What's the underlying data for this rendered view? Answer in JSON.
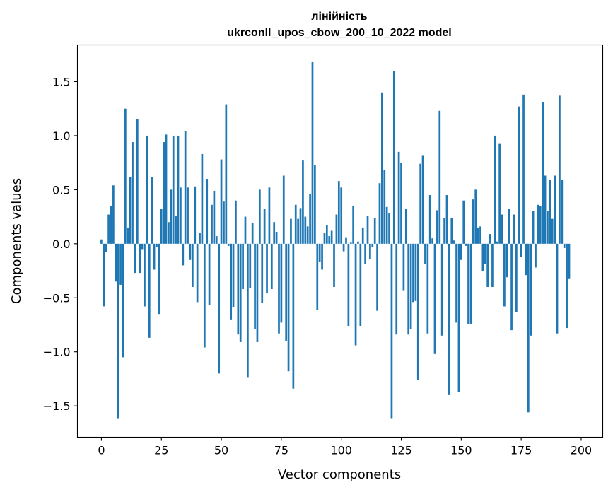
{
  "chart_data": {
    "type": "bar",
    "title": "лінійність",
    "subtitle": "ukrconll_upos_cbow_200_10_2022 model",
    "xlabel": "Vector components",
    "ylabel": "Components values",
    "xlim": [
      -10,
      209
    ],
    "ylim": [
      -1.79,
      1.84
    ],
    "xticks": [
      0,
      25,
      50,
      75,
      100,
      125,
      150,
      175,
      200
    ],
    "yticks": [
      -1.5,
      -1.0,
      -0.5,
      0.0,
      0.5,
      1.0,
      1.5
    ],
    "ytick_labels": [
      "−1.5",
      "−1.0",
      "−0.5",
      "0.0",
      "0.5",
      "1.0",
      "1.5"
    ],
    "grid": false,
    "bar_color": "#1f77b4",
    "values": [
      0.04,
      -0.58,
      -0.08,
      0.27,
      0.35,
      0.54,
      -0.35,
      -1.62,
      -0.38,
      -1.05,
      1.25,
      0.15,
      0.62,
      0.94,
      -0.27,
      1.15,
      -0.27,
      -0.05,
      -0.58,
      1.0,
      -0.87,
      0.62,
      -0.24,
      -0.03,
      -0.65,
      0.32,
      0.94,
      1.01,
      0.2,
      0.5,
      1.0,
      0.26,
      1.0,
      0.52,
      -0.2,
      1.04,
      0.52,
      -0.15,
      -0.4,
      0.53,
      -0.54,
      0.1,
      0.83,
      -0.96,
      0.6,
      -0.57,
      0.36,
      0.49,
      0.07,
      -1.2,
      0.78,
      0.39,
      1.29,
      -0.02,
      -0.7,
      -0.59,
      0.4,
      -0.84,
      -0.91,
      -0.42,
      0.25,
      -1.24,
      -0.41,
      0.19,
      -0.79,
      -0.91,
      0.5,
      -0.55,
      0.32,
      -0.46,
      0.52,
      -0.42,
      0.2,
      0.11,
      -0.83,
      -0.73,
      0.63,
      -0.9,
      -1.18,
      0.23,
      -1.34,
      0.36,
      0.23,
      0.33,
      0.77,
      0.25,
      0.16,
      0.46,
      1.68,
      0.73,
      -0.61,
      -0.17,
      -0.24,
      0.1,
      0.17,
      0.07,
      0.12,
      -0.4,
      0.27,
      0.58,
      0.52,
      -0.07,
      0.06,
      -0.76,
      0.01,
      0.35,
      -0.94,
      0.02,
      -0.76,
      0.15,
      -0.19,
      0.26,
      -0.14,
      -0.03,
      0.24,
      -0.62,
      0.56,
      1.4,
      0.68,
      0.34,
      0.28,
      -1.62,
      1.6,
      -0.84,
      0.85,
      0.75,
      -0.43,
      0.32,
      -0.84,
      -0.79,
      -0.54,
      -0.53,
      -1.26,
      0.74,
      0.82,
      -0.19,
      -0.83,
      0.45,
      0.05,
      -1.02,
      0.31,
      1.23,
      -0.85,
      0.24,
      0.45,
      -1.4,
      0.24,
      0.03,
      -0.73,
      -1.37,
      -0.15,
      0.4,
      -0.02,
      -0.74,
      -0.74,
      0.41,
      0.5,
      0.15,
      0.16,
      -0.25,
      -0.19,
      -0.4,
      0.09,
      -0.4,
      1.0,
      0.02,
      0.93,
      0.27,
      -0.58,
      -0.31,
      0.32,
      -0.8,
      0.27,
      -0.63,
      1.27,
      -0.12,
      1.38,
      -0.29,
      -1.56,
      -0.85,
      0.3,
      -0.22,
      0.36,
      0.35,
      1.31,
      0.63,
      0.3,
      0.59,
      0.23,
      0.63,
      -0.83,
      1.37,
      0.59,
      -0.04,
      -0.78,
      -0.32
    ]
  }
}
